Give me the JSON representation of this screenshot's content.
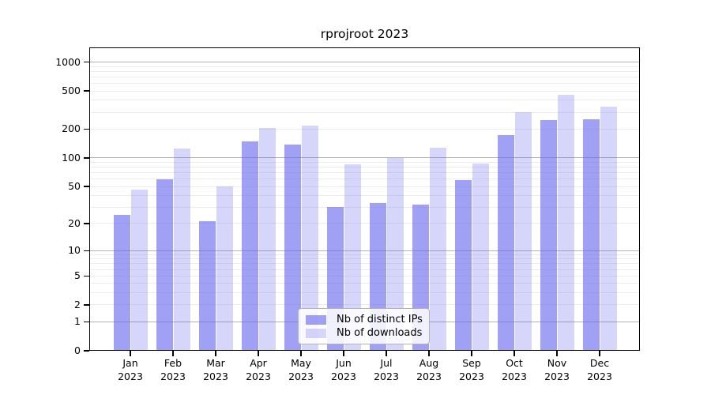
{
  "chart_data": {
    "type": "bar",
    "title": "rprojroot 2023",
    "categories": [
      "Jan",
      "Feb",
      "Mar",
      "Apr",
      "May",
      "Jun",
      "Jul",
      "Aug",
      "Sep",
      "Oct",
      "Nov",
      "Dec"
    ],
    "year_label": "2023",
    "series": [
      {
        "name": "Nb of distinct IPs",
        "color": "rgba(102,102,238,0.62)",
        "values": [
          25,
          60,
          21,
          148,
          138,
          30,
          33,
          32,
          58,
          174,
          249,
          254
        ]
      },
      {
        "name": "Nb of downloads",
        "color": "rgba(102,102,238,0.27)",
        "values": [
          46,
          125,
          50,
          205,
          218,
          85,
          100,
          128,
          87,
          300,
          460,
          340
        ]
      }
    ],
    "yscale": "log1p",
    "ylim": [
      0,
      1420
    ],
    "y_ticks": [
      1000,
      500,
      200,
      100,
      50,
      20,
      10,
      5,
      2,
      1,
      0
    ],
    "major_gridlines": [
      1,
      10,
      100,
      1000
    ],
    "minor_gridlines": [
      2,
      3,
      4,
      5,
      6,
      7,
      8,
      9,
      20,
      30,
      40,
      50,
      60,
      70,
      80,
      90,
      200,
      300,
      400,
      500,
      600,
      700,
      800,
      900
    ],
    "grid": true,
    "legend_position": "bottom-center",
    "colors": {
      "bar_dark_composited": "#a0a0f4",
      "bar_light_composited": "#d6d6fa",
      "grid_major": "#b2b2b2",
      "grid_minor": "#ececec",
      "axis": "#000000",
      "background": "#ffffff"
    }
  }
}
